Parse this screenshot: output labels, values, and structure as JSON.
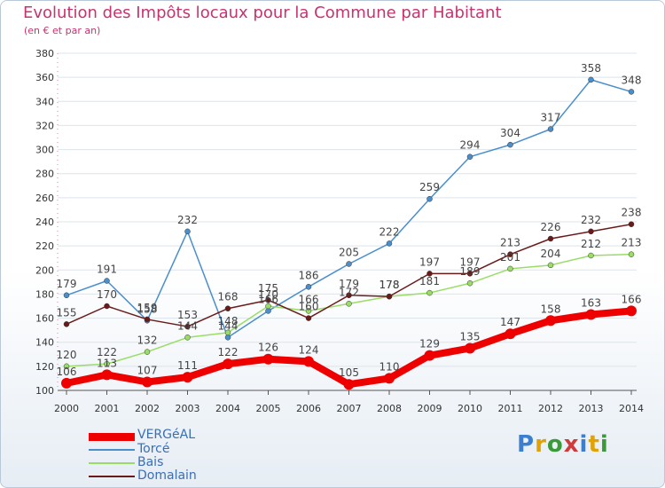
{
  "title": "Evolution des Impôts locaux pour la Commune par Habitant",
  "subtitle": "(en € et par an)",
  "logo": "Proxiti",
  "colors": {
    "title": "#c8326e",
    "axis_text": "#333333",
    "grid": "#dde4ea",
    "label": "#444444"
  },
  "chart_data": {
    "type": "line",
    "title": "Evolution des Impôts locaux pour la Commune par Habitant",
    "xlabel": "",
    "ylabel": "",
    "categories": [
      "2000",
      "2001",
      "2002",
      "2003",
      "2004",
      "2005",
      "2006",
      "2007",
      "2008",
      "2009",
      "2010",
      "2011",
      "2012",
      "2013",
      "2014"
    ],
    "ylim": [
      100,
      380
    ],
    "yticks": [
      100,
      120,
      140,
      160,
      180,
      200,
      220,
      240,
      260,
      280,
      300,
      320,
      340,
      360,
      380
    ],
    "series": [
      {
        "name": "VERGéAL",
        "color": "#ee0000",
        "values": [
          106,
          113,
          107,
          111,
          122,
          126,
          124,
          105,
          110,
          129,
          135,
          147,
          158,
          163,
          166
        ]
      },
      {
        "name": "Torcé",
        "color": "#4a8fcc",
        "values": [
          179,
          191,
          158,
          232,
          144,
          166,
          186,
          205,
          222,
          259,
          294,
          304,
          317,
          358,
          348
        ]
      },
      {
        "name": "Bais",
        "color": "#99dd66",
        "values": [
          120,
          122,
          132,
          144,
          148,
          170,
          166,
          172,
          178,
          181,
          189,
          201,
          204,
          212,
          213
        ]
      },
      {
        "name": "Domalain",
        "color": "#6b1a1a",
        "values": [
          155,
          170,
          159,
          153,
          168,
          175,
          160,
          179,
          178,
          197,
          197,
          213,
          226,
          232,
          238
        ]
      }
    ]
  }
}
